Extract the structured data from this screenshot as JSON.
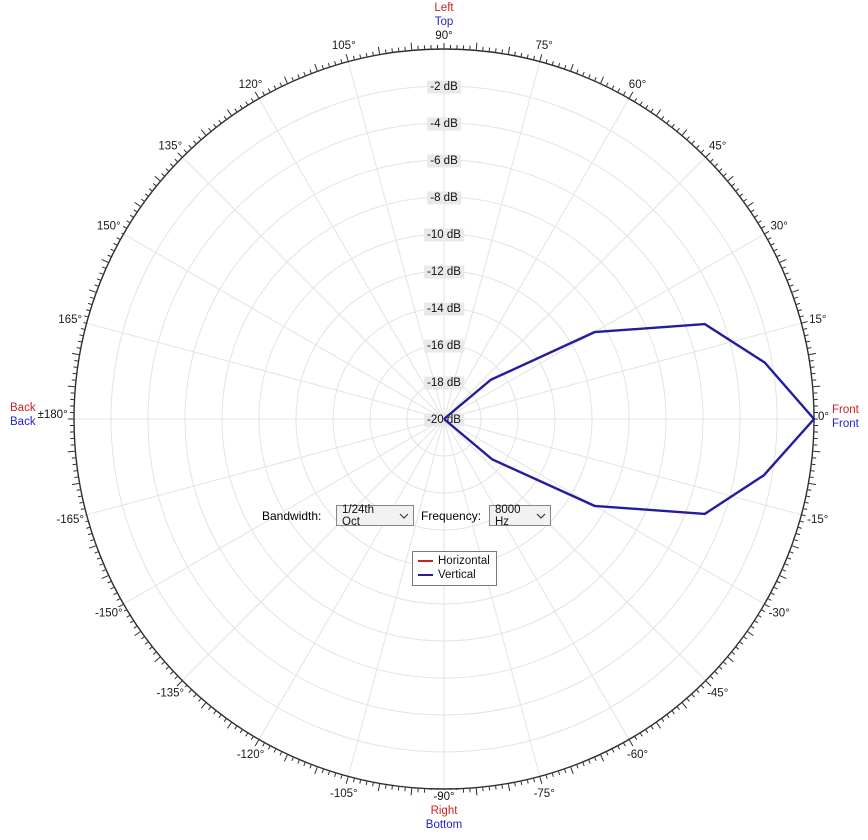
{
  "window": {
    "background": "#ffffff"
  },
  "colors": {
    "horizontal_plane_label": "#cc2222",
    "vertical_plane_label": "#2222cc",
    "grid": "#e3e3e3",
    "rim": "#2e2e2e",
    "db_label_bg": "#e9e9e9",
    "curve_vertical": "#231d9e",
    "curve_horizontal": "#cc2222"
  },
  "chart_data": {
    "type": "line",
    "polar": true,
    "title": "",
    "angle_axis": {
      "unit": "degrees",
      "label_step_deg": 15,
      "major_tick_step_deg": 5,
      "minor_tick_step_deg": 1,
      "labels": [
        "15°",
        "30°",
        "45°",
        "60°",
        "75°",
        "105°",
        "120°",
        "135°",
        "150°",
        "165°",
        "-15°",
        "-30°",
        "-45°",
        "-60°",
        "-75°",
        "-105°",
        "-120°",
        "-135°",
        "-150°",
        "-165°"
      ]
    },
    "radial_axis": {
      "unit": "dB",
      "max": 0,
      "min": -20,
      "ring_step": 2,
      "tick_labels": [
        "-2 dB",
        "-4 dB",
        "-6 dB",
        "-8 dB",
        "-10 dB",
        "-12 dB",
        "-14 dB",
        "-16 dB",
        "-18 dB",
        "-20 dB"
      ]
    },
    "endpoints": {
      "top": {
        "horizontal": "Left",
        "vertical": "Top",
        "angle": "90°"
      },
      "right": {
        "horizontal": "Front",
        "vertical": "Front",
        "angle": "0°"
      },
      "bottom": {
        "horizontal": "Right",
        "vertical": "Bottom",
        "angle": "-90°"
      },
      "left": {
        "horizontal": "Back",
        "vertical": "Back",
        "angle": "±180°"
      }
    },
    "series": [
      {
        "name": "Horizontal",
        "color": "#cc2222",
        "points_deg_db": []
      },
      {
        "name": "Vertical",
        "color": "#231d9e",
        "points_deg_db": [
          [
            50,
            -20
          ],
          [
            40,
            -16.7
          ],
          [
            30,
            -10.6
          ],
          [
            20,
            -5.0
          ],
          [
            10,
            -2.4
          ],
          [
            0,
            0
          ],
          [
            -10,
            -2.45
          ],
          [
            -20,
            -5.0
          ],
          [
            -30,
            -10.6
          ],
          [
            -40,
            -16.6
          ],
          [
            -50,
            -20
          ]
        ]
      }
    ],
    "legend": {
      "position": "below-center"
    }
  },
  "controls": {
    "bandwidth": {
      "label": "Bandwidth:",
      "value": "1/24th Oct"
    },
    "frequency": {
      "label": "Frequency:",
      "value": "8000 Hz"
    }
  }
}
